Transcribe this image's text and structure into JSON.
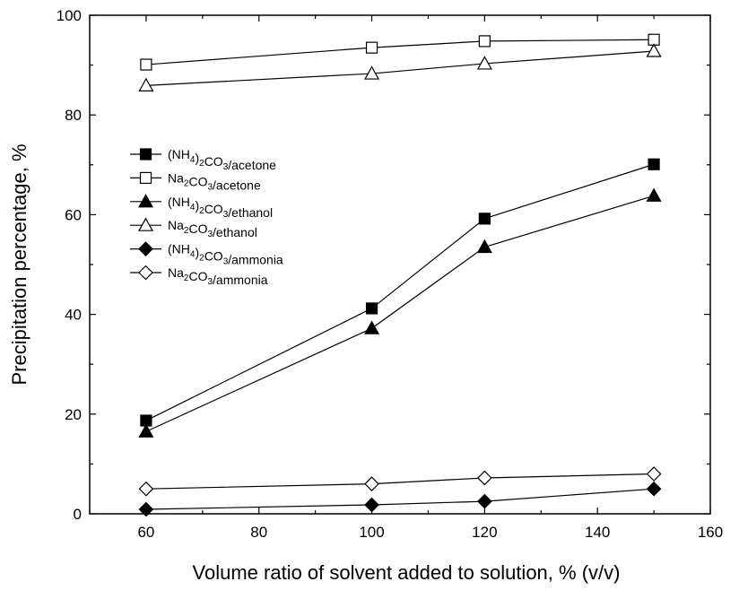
{
  "chart_data": {
    "type": "line",
    "xlabel": "Volume ratio of solvent added to solution, % (v/v)",
    "ylabel": "Precipitation percentage, %",
    "xlim": [
      50,
      160
    ],
    "ylim": [
      0,
      100
    ],
    "x_ticks": [
      "60",
      "80",
      "100",
      "120",
      "140",
      "160"
    ],
    "y_ticks": [
      "0",
      "20",
      "40",
      "60",
      "80",
      "100"
    ],
    "grid": false,
    "legend_position": "left",
    "x": [
      60,
      100,
      120,
      150
    ],
    "series": [
      {
        "name": "(NH4)2CO3/acetone",
        "marker": "square-filled",
        "values": [
          18.7,
          41.2,
          59.2,
          70.1
        ]
      },
      {
        "name": "Na2CO3/acetone",
        "marker": "square-open",
        "values": [
          90.1,
          93.5,
          94.8,
          95.1
        ]
      },
      {
        "name": "(NH4)2CO3/ethanol",
        "marker": "triangle-filled",
        "values": [
          16.5,
          37.2,
          53.5,
          63.8
        ]
      },
      {
        "name": "Na2CO3/ethanol",
        "marker": "triangle-open",
        "values": [
          85.9,
          88.3,
          90.3,
          92.8
        ]
      },
      {
        "name": "(NH4)2CO3/ammonia",
        "marker": "diamond-filled",
        "values": [
          0.9,
          1.8,
          2.5,
          5.0
        ]
      },
      {
        "name": "Na2CO3/ammonia",
        "marker": "diamond-open",
        "values": [
          5.0,
          6.0,
          7.2,
          8.0
        ]
      }
    ]
  }
}
